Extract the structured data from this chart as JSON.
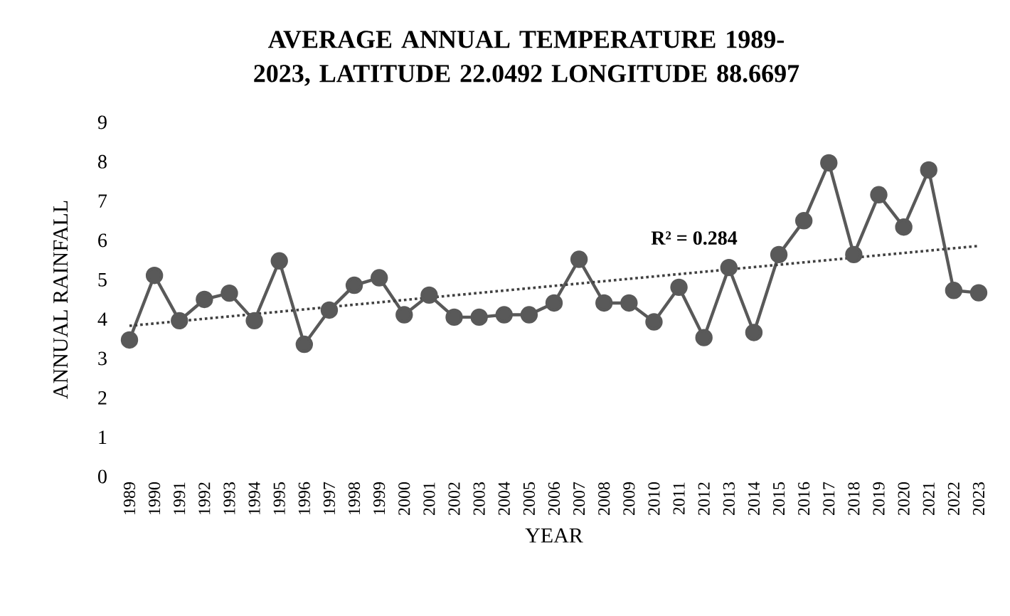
{
  "chart_data": {
    "type": "line",
    "title": "AVERAGE ANNUAL TEMPERATURE 1989-2023, LATITUDE  22.0492    LONGITUDE 88.6697",
    "xlabel": "YEAR",
    "ylabel": "ANNUAL RAINFALL",
    "x": [
      1989,
      1990,
      1991,
      1992,
      1993,
      1994,
      1995,
      1996,
      1997,
      1998,
      1999,
      2000,
      2001,
      2002,
      2003,
      2004,
      2005,
      2006,
      2007,
      2008,
      2009,
      2010,
      2011,
      2012,
      2013,
      2014,
      2015,
      2016,
      2017,
      2018,
      2019,
      2020,
      2021,
      2022,
      2023
    ],
    "series": [
      {
        "color": "#595959",
        "marker": "circle",
        "line_style": "solid",
        "values": [
          3.47,
          5.11,
          3.96,
          4.5,
          4.66,
          3.96,
          5.48,
          3.36,
          4.23,
          4.86,
          5.05,
          4.11,
          4.61,
          4.05,
          4.05,
          4.11,
          4.11,
          4.41,
          5.52,
          4.41,
          4.41,
          3.93,
          4.81,
          3.53,
          5.31,
          3.66,
          5.64,
          6.5,
          7.97,
          5.64,
          7.16,
          6.34,
          7.79,
          4.73,
          4.67
        ]
      },
      {
        "type": "line",
        "color": "#404040",
        "marker": "none",
        "line_style": "dotted",
        "x": [
          1989,
          2023
        ],
        "values": [
          3.83,
          5.86
        ]
      }
    ],
    "annotations": [
      "R² = 0.284"
    ],
    "xlim": [
      1989,
      2023
    ],
    "xticks": [
      1989,
      1990,
      1991,
      1992,
      1993,
      1994,
      1995,
      1996,
      1997,
      1998,
      1999,
      2000,
      2001,
      2002,
      2003,
      2004,
      2005,
      2006,
      2007,
      2008,
      2009,
      2010,
      2011,
      2012,
      2013,
      2014,
      2015,
      2016,
      2017,
      2018,
      2019,
      2020,
      2021,
      2022,
      2023
    ],
    "ylim": [
      0,
      9
    ],
    "yticks": [
      0,
      1,
      2,
      3,
      4,
      5,
      6,
      7,
      8,
      9
    ],
    "grid": false,
    "legend": false
  }
}
